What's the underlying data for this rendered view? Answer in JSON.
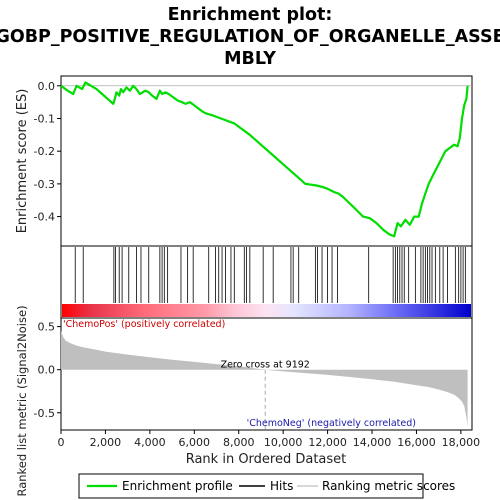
{
  "chart_data": {
    "type": "line",
    "title_lines": [
      "Enrichment plot:",
      "GOBP_POSITIVE_REGULATION_OF_ORGANELLE_ASSE",
      "MBLY"
    ],
    "colors": {
      "es_line": "#00dd00",
      "hit": "#000000",
      "metric_fill": "#bfbfbf",
      "pos_label": "#cc0000",
      "neg_label": "#1a1aaa",
      "zero_line": "#aaaaaa"
    },
    "es_panel": {
      "ylabel": "Enrichment score (ES)",
      "ylim": [
        -0.49,
        0.03
      ],
      "yticks": [
        0.0,
        -0.1,
        -0.2,
        -0.3,
        -0.4
      ],
      "ytick_labels": [
        "0.0",
        "-0.1",
        "-0.2",
        "-0.3",
        "-0.4"
      ],
      "x": [
        0,
        300,
        550,
        700,
        950,
        1100,
        1350,
        1600,
        1850,
        2100,
        2350,
        2380,
        2500,
        2620,
        2700,
        2800,
        2950,
        3100,
        3250,
        3400,
        3550,
        3800,
        3950,
        4100,
        4300,
        4450,
        4550,
        4700,
        4850,
        5050,
        5250,
        5450,
        5600,
        5800,
        6000,
        6200,
        6400,
        6550,
        6800,
        7000,
        7200,
        7400,
        7600,
        7800,
        8000,
        8500,
        9000,
        9500,
        10000,
        10500,
        11000,
        11500,
        11800,
        12000,
        12300,
        12500,
        12700,
        13000,
        13300,
        13600,
        13900,
        14200,
        14500,
        14800,
        15000,
        15150,
        15300,
        15500,
        15700,
        15900,
        16100,
        16250,
        16400,
        16550,
        16700,
        16850,
        17000,
        17150,
        17300,
        17500,
        17700,
        17850,
        17950,
        18050,
        18150,
        18250,
        18300
      ],
      "y": [
        0.0,
        -0.015,
        -0.025,
        0.0,
        -0.01,
        0.01,
        0.0,
        -0.01,
        -0.025,
        -0.04,
        -0.055,
        -0.05,
        -0.02,
        -0.03,
        -0.01,
        -0.02,
        -0.005,
        -0.015,
        0.0,
        -0.01,
        -0.025,
        -0.015,
        -0.02,
        -0.03,
        -0.04,
        -0.015,
        -0.025,
        -0.02,
        -0.025,
        -0.035,
        -0.045,
        -0.05,
        -0.055,
        -0.05,
        -0.06,
        -0.07,
        -0.08,
        -0.085,
        -0.09,
        -0.095,
        -0.1,
        -0.105,
        -0.11,
        -0.115,
        -0.125,
        -0.15,
        -0.18,
        -0.21,
        -0.24,
        -0.27,
        -0.3,
        -0.305,
        -0.31,
        -0.315,
        -0.325,
        -0.33,
        -0.34,
        -0.36,
        -0.38,
        -0.4,
        -0.405,
        -0.42,
        -0.44,
        -0.455,
        -0.46,
        -0.42,
        -0.43,
        -0.41,
        -0.425,
        -0.4,
        -0.4,
        -0.36,
        -0.33,
        -0.3,
        -0.28,
        -0.26,
        -0.24,
        -0.22,
        -0.2,
        -0.19,
        -0.18,
        -0.185,
        -0.16,
        -0.1,
        -0.06,
        -0.04,
        0.0
      ]
    },
    "hits_panel": {
      "positions": [
        640,
        1000,
        2380,
        2450,
        2620,
        2750,
        3050,
        3400,
        3600,
        3950,
        4450,
        4550,
        4650,
        4800,
        5400,
        5700,
        5950,
        6650,
        6950,
        7100,
        7250,
        7400,
        7650,
        7800,
        8250,
        8350,
        8500,
        9100,
        9550,
        10350,
        10450,
        10700,
        11450,
        11550,
        11750,
        12000,
        12200,
        12450,
        13850,
        14950,
        15050,
        15150,
        15250,
        15350,
        15450,
        15650,
        15950,
        16200,
        16300,
        16400,
        16500,
        16600,
        16700,
        16850,
        17050,
        17200,
        17400,
        17750,
        17900,
        18000,
        18100,
        18200
      ]
    },
    "gradient_labels": {
      "positive": "'ChemoPos' (positively correlated)",
      "negative": "'ChemoNeg' (negatively correlated)"
    },
    "metric_panel": {
      "ylabel": "Ranked list metric (Signal2Noise)",
      "ylim": [
        -0.7,
        0.6
      ],
      "yticks": [
        0.5,
        0.0,
        -0.5
      ],
      "ytick_labels": [
        "0.5",
        "0.0",
        "-0.5"
      ],
      "x": [
        0,
        100,
        200,
        400,
        700,
        1000,
        1500,
        2000,
        3000,
        4000,
        5000,
        6000,
        7000,
        8000,
        9192,
        10000,
        11000,
        12000,
        13000,
        14000,
        15000,
        16000,
        16500,
        17000,
        17400,
        17700,
        17900,
        18050,
        18150,
        18250,
        18300
      ],
      "values": [
        0.45,
        0.38,
        0.34,
        0.31,
        0.28,
        0.26,
        0.235,
        0.21,
        0.175,
        0.145,
        0.115,
        0.09,
        0.065,
        0.04,
        0.0,
        -0.02,
        -0.04,
        -0.06,
        -0.085,
        -0.11,
        -0.14,
        -0.18,
        -0.2,
        -0.23,
        -0.26,
        -0.29,
        -0.33,
        -0.37,
        -0.42,
        -0.55,
        -0.65
      ],
      "zero_cross_label": "Zero cross at 9192",
      "zero_cross": 9192
    },
    "xaxis": {
      "xlabel": "Rank in Ordered Dataset",
      "xlim": [
        0,
        18500
      ],
      "xticks": [
        0,
        2000,
        4000,
        6000,
        8000,
        10000,
        12000,
        14000,
        16000,
        18000
      ],
      "xtick_labels": [
        "0",
        "2,000",
        "4,000",
        "6,000",
        "8,000",
        "10,000",
        "12,000",
        "14,000",
        "16,000",
        "18,000"
      ],
      "max_rank": 18300
    },
    "legend": [
      {
        "label": "Enrichment profile",
        "kind": "line-green"
      },
      {
        "label": "Hits",
        "kind": "line-black"
      },
      {
        "label": "Ranking metric scores",
        "kind": "line-grey"
      }
    ]
  }
}
